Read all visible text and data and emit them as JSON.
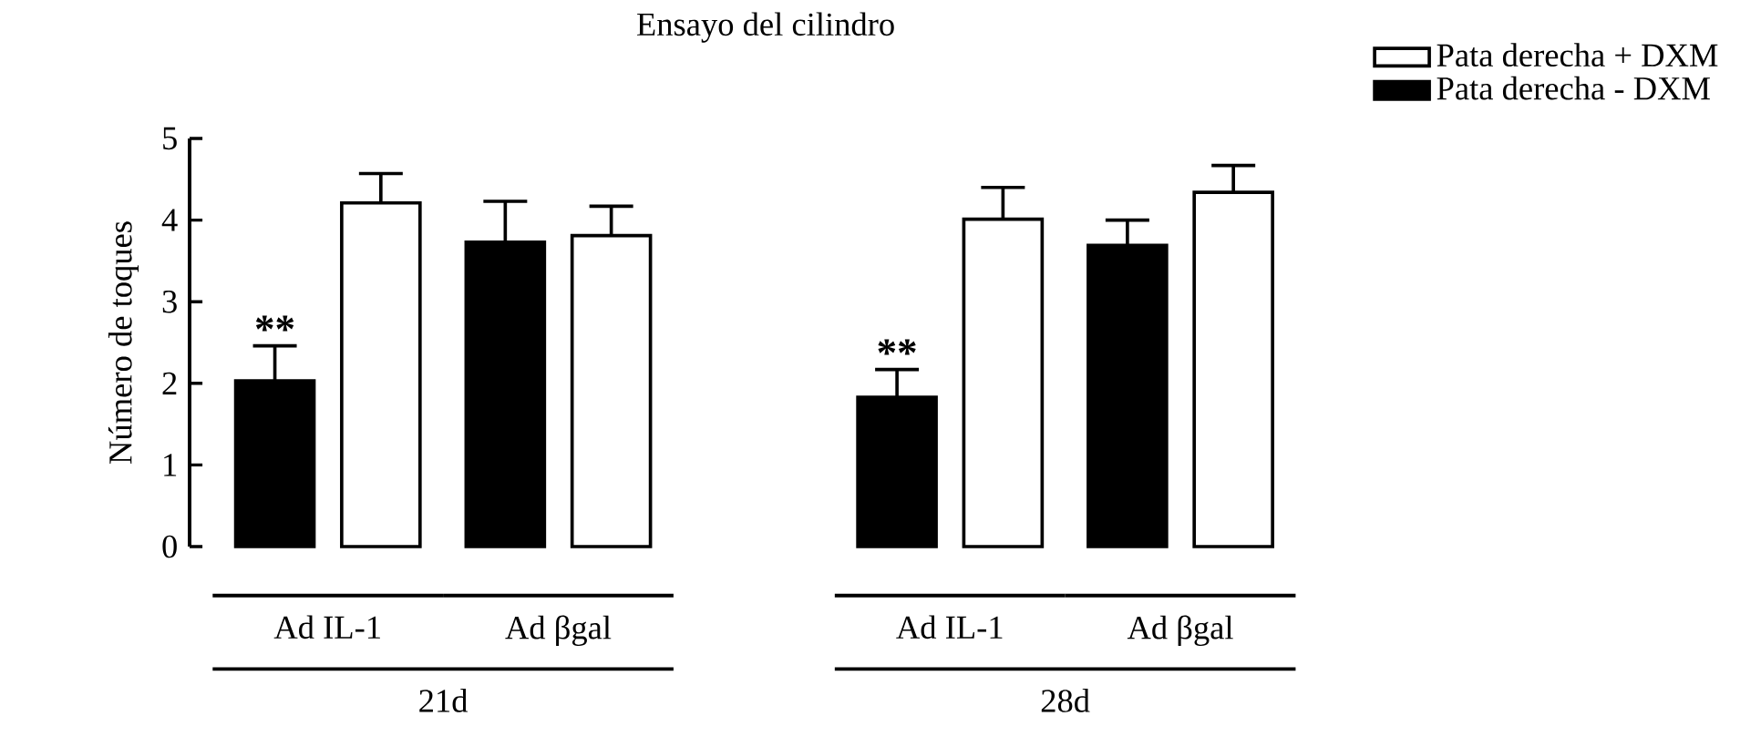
{
  "chart_data": {
    "type": "bar",
    "title": "Ensayo del cilindro",
    "ylabel": "Número de toques",
    "categories": [
      "Ad IL-1",
      "Ad βgal",
      "Ad IL-1",
      "Ad βgal"
    ],
    "series": [
      {
        "name": "Pata derecha -  DXM",
        "color": "#000000",
        "values": [
          2.03,
          3.73,
          1.83,
          3.69
        ],
        "errors": [
          0.43,
          0.5,
          0.34,
          0.31
        ]
      },
      {
        "name": "Pata derecha + DXM",
        "color": "#ffffff",
        "values": [
          4.21,
          3.81,
          4.01,
          4.34
        ],
        "errors": [
          0.36,
          0.36,
          0.39,
          0.33
        ]
      }
    ],
    "ylim": [
      0,
      5
    ],
    "yticks": [
      0,
      1,
      2,
      3,
      4,
      5
    ],
    "grid": false,
    "legend": "top right",
    "annotations": [
      "**",
      "**",
      "21d",
      "28d"
    ]
  }
}
